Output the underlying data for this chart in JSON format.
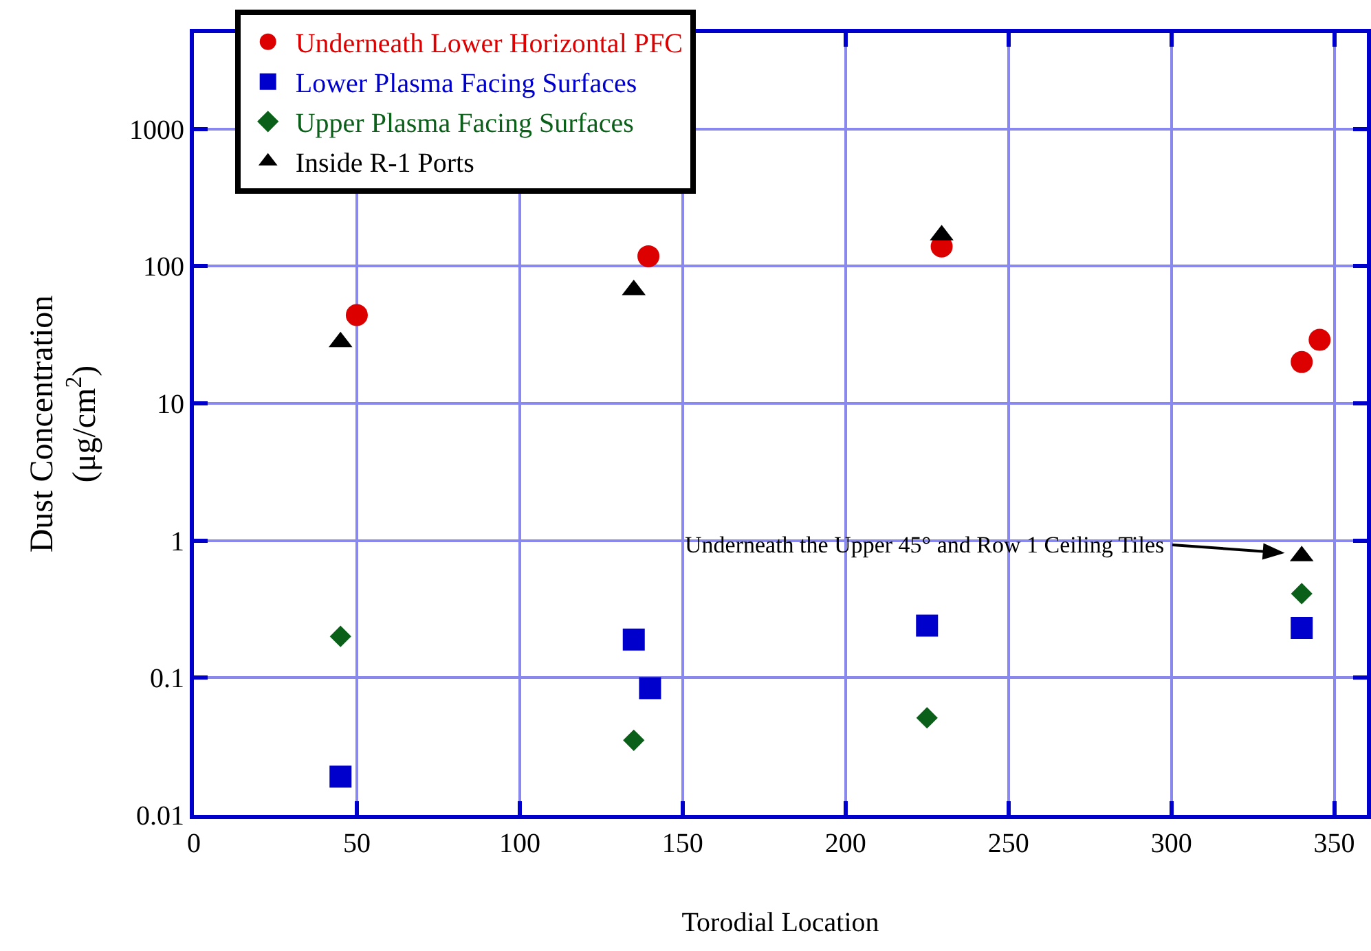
{
  "chart_data": {
    "type": "scatter",
    "xlabel": "Torodial Location",
    "ylabel": "Dust Concentration (μg/cm$^{2}$)",
    "xlim": [
      0,
      360
    ],
    "xticks": [
      0,
      50,
      100,
      150,
      200,
      250,
      300,
      350
    ],
    "ylim": [
      0.01,
      5000
    ],
    "yticks": [
      0.01,
      0.1,
      1,
      10,
      100,
      1000
    ],
    "log": "y",
    "grid": true,
    "legend": "top left",
    "series": [
      {
        "name": "Underneath Lower Horizontal PFC",
        "color": "#dd0000",
        "marker": "circle",
        "x": [
          50,
          139.5,
          229.5,
          340,
          345.5
        ],
        "values": [
          44,
          118,
          139,
          20,
          29
        ]
      },
      {
        "name": "Lower Plasma Facing Surfaces",
        "color": "#0000cc",
        "marker": "square",
        "x": [
          45,
          135,
          140,
          225,
          340
        ],
        "values": [
          0.019,
          0.19,
          0.084,
          0.24,
          0.23
        ]
      },
      {
        "name": "Upper Plasma Facing Surfaces",
        "color": "#0a6018",
        "marker": "diamond",
        "x": [
          45,
          135,
          225,
          340
        ],
        "values": [
          0.2,
          0.035,
          0.051,
          0.41
        ]
      },
      {
        "name": "Inside R-1 Ports",
        "color": "#000000",
        "marker": "triangle",
        "x": [
          45,
          135,
          229.5,
          340
        ],
        "values": [
          28,
          67,
          168,
          0.77
        ]
      }
    ],
    "annotations": [
      "Underneath the Upper 45° and Row 1 Ceiling Tiles"
    ]
  }
}
